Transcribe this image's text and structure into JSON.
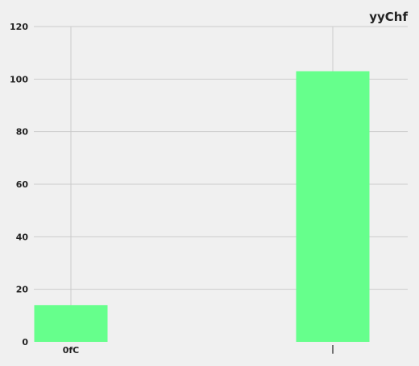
{
  "chart_data": {
    "type": "bar",
    "title": "yyChf",
    "xlabel": "",
    "ylabel": "",
    "categories": [
      "0fC",
      "|"
    ],
    "values": [
      14,
      103
    ],
    "ylim": [
      0,
      120
    ],
    "yticks": [
      0,
      20,
      40,
      60,
      80,
      100,
      120
    ],
    "grid": true,
    "bar_color": "#66ff8c",
    "background_color": "#f0f0f0",
    "grid_color": "#cbcbcb"
  }
}
